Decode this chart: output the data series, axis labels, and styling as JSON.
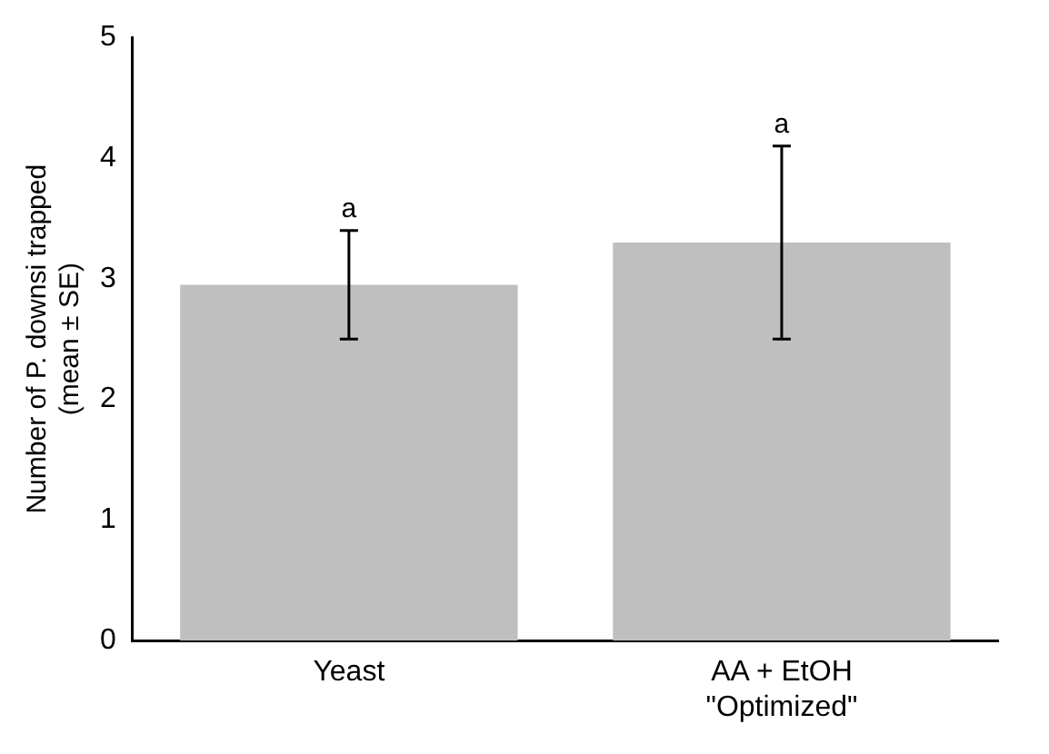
{
  "chart_data": {
    "type": "bar",
    "ylabel": "Number of P. downsi trapped\n(mean ± SE)",
    "categories": [
      "Yeast",
      "AA + EtOH\n\"Optimized\""
    ],
    "values": [
      2.95,
      3.3
    ],
    "color": "#bfbfbf",
    "errors": [
      [
        2.5,
        3.4
      ],
      [
        2.5,
        4.1
      ]
    ],
    "ylim": [
      0,
      5
    ],
    "yticks": [
      0,
      1,
      2,
      3,
      4,
      5
    ],
    "grid": false,
    "legend": false,
    "annotations": [
      {
        "text": "a",
        "x": "Yeast",
        "y": 3.4
      },
      {
        "text": "a",
        "x": "AA + EtOH\n\"Optimized\"",
        "y": 4.1
      }
    ]
  }
}
